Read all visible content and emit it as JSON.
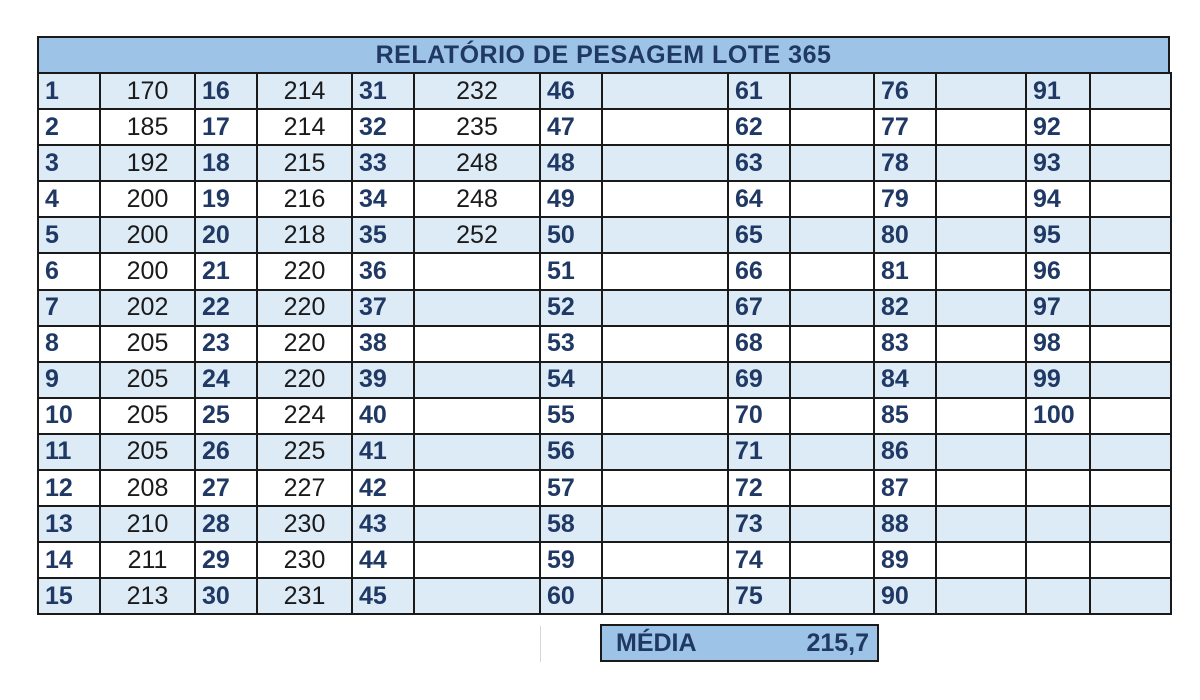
{
  "report": {
    "title": "RELATÓRIO DE PESAGEM LOTE 365",
    "rows": [
      {
        "cells": [
          {
            "n": "1",
            "v": "170"
          },
          {
            "n": "16",
            "v": "214"
          },
          {
            "n": "31",
            "v": "232"
          },
          {
            "n": "46",
            "v": ""
          },
          {
            "n": "61",
            "v": ""
          },
          {
            "n": "76",
            "v": ""
          },
          {
            "n": "91",
            "v": ""
          }
        ]
      },
      {
        "cells": [
          {
            "n": "2",
            "v": "185"
          },
          {
            "n": "17",
            "v": "214"
          },
          {
            "n": "32",
            "v": "235"
          },
          {
            "n": "47",
            "v": ""
          },
          {
            "n": "62",
            "v": ""
          },
          {
            "n": "77",
            "v": ""
          },
          {
            "n": "92",
            "v": ""
          }
        ]
      },
      {
        "cells": [
          {
            "n": "3",
            "v": "192"
          },
          {
            "n": "18",
            "v": "215"
          },
          {
            "n": "33",
            "v": "248"
          },
          {
            "n": "48",
            "v": ""
          },
          {
            "n": "63",
            "v": ""
          },
          {
            "n": "78",
            "v": ""
          },
          {
            "n": "93",
            "v": ""
          }
        ]
      },
      {
        "cells": [
          {
            "n": "4",
            "v": "200"
          },
          {
            "n": "19",
            "v": "216"
          },
          {
            "n": "34",
            "v": "248"
          },
          {
            "n": "49",
            "v": ""
          },
          {
            "n": "64",
            "v": ""
          },
          {
            "n": "79",
            "v": ""
          },
          {
            "n": "94",
            "v": ""
          }
        ]
      },
      {
        "cells": [
          {
            "n": "5",
            "v": "200"
          },
          {
            "n": "20",
            "v": "218"
          },
          {
            "n": "35",
            "v": "252"
          },
          {
            "n": "50",
            "v": ""
          },
          {
            "n": "65",
            "v": ""
          },
          {
            "n": "80",
            "v": ""
          },
          {
            "n": "95",
            "v": ""
          }
        ]
      },
      {
        "cells": [
          {
            "n": "6",
            "v": "200"
          },
          {
            "n": "21",
            "v": "220"
          },
          {
            "n": "36",
            "v": ""
          },
          {
            "n": "51",
            "v": ""
          },
          {
            "n": "66",
            "v": ""
          },
          {
            "n": "81",
            "v": ""
          },
          {
            "n": "96",
            "v": ""
          }
        ]
      },
      {
        "cells": [
          {
            "n": "7",
            "v": "202"
          },
          {
            "n": "22",
            "v": "220"
          },
          {
            "n": "37",
            "v": ""
          },
          {
            "n": "52",
            "v": ""
          },
          {
            "n": "67",
            "v": ""
          },
          {
            "n": "82",
            "v": ""
          },
          {
            "n": "97",
            "v": ""
          }
        ]
      },
      {
        "cells": [
          {
            "n": "8",
            "v": "205"
          },
          {
            "n": "23",
            "v": "220"
          },
          {
            "n": "38",
            "v": ""
          },
          {
            "n": "53",
            "v": ""
          },
          {
            "n": "68",
            "v": ""
          },
          {
            "n": "83",
            "v": ""
          },
          {
            "n": "98",
            "v": ""
          }
        ]
      },
      {
        "cells": [
          {
            "n": "9",
            "v": "205"
          },
          {
            "n": "24",
            "v": "220"
          },
          {
            "n": "39",
            "v": ""
          },
          {
            "n": "54",
            "v": ""
          },
          {
            "n": "69",
            "v": ""
          },
          {
            "n": "84",
            "v": ""
          },
          {
            "n": "99",
            "v": ""
          }
        ]
      },
      {
        "cells": [
          {
            "n": "10",
            "v": "205"
          },
          {
            "n": "25",
            "v": "224"
          },
          {
            "n": "40",
            "v": ""
          },
          {
            "n": "55",
            "v": ""
          },
          {
            "n": "70",
            "v": ""
          },
          {
            "n": "85",
            "v": ""
          },
          {
            "n": "100",
            "v": ""
          }
        ]
      },
      {
        "cells": [
          {
            "n": "11",
            "v": "205"
          },
          {
            "n": "26",
            "v": "225"
          },
          {
            "n": "41",
            "v": ""
          },
          {
            "n": "56",
            "v": ""
          },
          {
            "n": "71",
            "v": ""
          },
          {
            "n": "86",
            "v": ""
          },
          {
            "n": "",
            "v": ""
          }
        ]
      },
      {
        "cells": [
          {
            "n": "12",
            "v": "208"
          },
          {
            "n": "27",
            "v": "227"
          },
          {
            "n": "42",
            "v": ""
          },
          {
            "n": "57",
            "v": ""
          },
          {
            "n": "72",
            "v": ""
          },
          {
            "n": "87",
            "v": ""
          },
          {
            "n": "",
            "v": ""
          }
        ]
      },
      {
        "cells": [
          {
            "n": "13",
            "v": "210"
          },
          {
            "n": "28",
            "v": "230"
          },
          {
            "n": "43",
            "v": ""
          },
          {
            "n": "58",
            "v": ""
          },
          {
            "n": "73",
            "v": ""
          },
          {
            "n": "88",
            "v": ""
          },
          {
            "n": "",
            "v": ""
          }
        ]
      },
      {
        "cells": [
          {
            "n": "14",
            "v": "211"
          },
          {
            "n": "29",
            "v": "230"
          },
          {
            "n": "44",
            "v": ""
          },
          {
            "n": "59",
            "v": ""
          },
          {
            "n": "74",
            "v": ""
          },
          {
            "n": "89",
            "v": ""
          },
          {
            "n": "",
            "v": ""
          }
        ]
      },
      {
        "cells": [
          {
            "n": "15",
            "v": "213"
          },
          {
            "n": "30",
            "v": "231"
          },
          {
            "n": "45",
            "v": ""
          },
          {
            "n": "60",
            "v": ""
          },
          {
            "n": "75",
            "v": ""
          },
          {
            "n": "90",
            "v": ""
          },
          {
            "n": "",
            "v": ""
          }
        ]
      }
    ],
    "average": {
      "label": "MÉDIA",
      "value": "215,7"
    }
  },
  "colors": {
    "header_fill": "#9dc3e6",
    "stripe_fill": "#ddebf7",
    "number_text": "#1f3864",
    "border": "#1a1a1a"
  }
}
